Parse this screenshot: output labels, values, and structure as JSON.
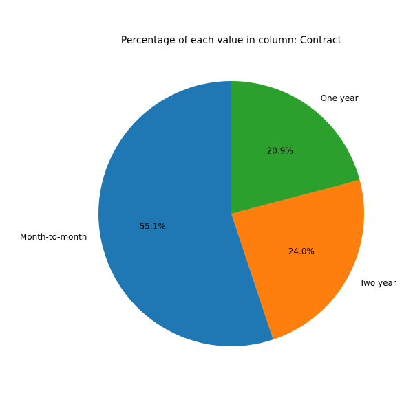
{
  "chart_data": {
    "type": "pie",
    "title": "Percentage of each value in column: Contract",
    "slices": [
      {
        "label": "Month-to-month",
        "value": 55.1,
        "pct_text": "55.1%",
        "color": "#1f77b4"
      },
      {
        "label": "Two year",
        "value": 24.0,
        "pct_text": "24.0%",
        "color": "#ff7f0e"
      },
      {
        "label": "One year",
        "value": 20.9,
        "pct_text": "20.9%",
        "color": "#2ca02c"
      }
    ],
    "start_angle_deg": 90,
    "direction": "counterclockwise"
  }
}
